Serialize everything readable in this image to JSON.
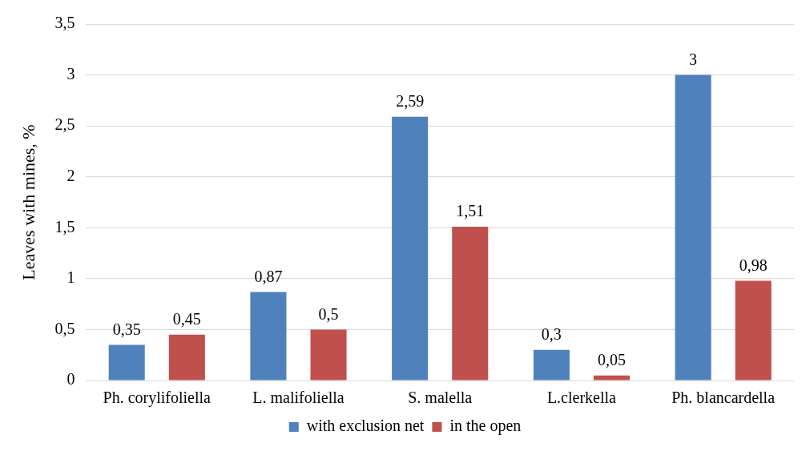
{
  "chart_data": {
    "type": "bar",
    "ylabel": "Leaves with mines, %",
    "categories": [
      "Ph. corylifoliella",
      "L. malifoliella",
      "S. malella",
      "L.clerkella",
      "Ph. blancardella"
    ],
    "series": [
      {
        "name": "with exclusion net",
        "color": "#4f81bd",
        "values": [
          0.35,
          0.87,
          2.59,
          0.3,
          3
        ],
        "value_labels": [
          "0,35",
          "0,87",
          "2,59",
          "0,3",
          "3"
        ]
      },
      {
        "name": "in the open",
        "color": "#c0504d",
        "values": [
          0.45,
          0.5,
          1.51,
          0.05,
          0.98
        ],
        "value_labels": [
          "0,45",
          "0,5",
          "1,51",
          "0,05",
          "0,98"
        ]
      }
    ],
    "ylim": [
      0,
      3.5
    ],
    "yticks": [
      0,
      {
        "value": 0.5,
        "label": "0,5"
      },
      1,
      {
        "value": 1.5,
        "label": "1,5"
      },
      2,
      {
        "value": 2.5,
        "label": "2,5"
      },
      3,
      {
        "value": 3.5,
        "label": "3,5"
      }
    ],
    "grid": "y",
    "legend": "bottom"
  }
}
